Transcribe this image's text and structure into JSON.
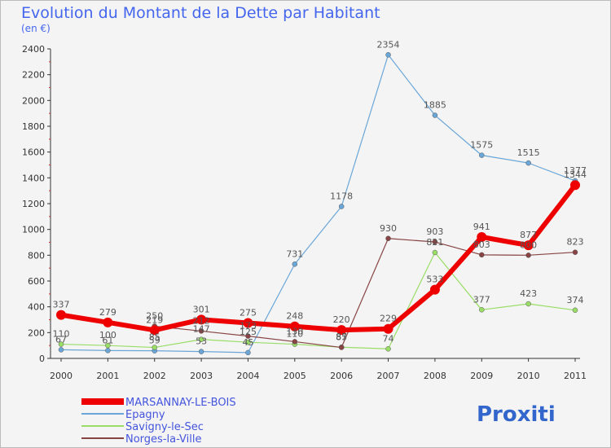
{
  "chart_data": {
    "type": "line",
    "title": "Evolution du Montant de la Dette par Habitant",
    "subtitle": "(en €)",
    "categories": [
      "2000",
      "2001",
      "2002",
      "2003",
      "2004",
      "2005",
      "2006",
      "2007",
      "2008",
      "2009",
      "2010",
      "2011"
    ],
    "ylim": [
      0,
      2400
    ],
    "yticks": [
      0,
      200,
      400,
      600,
      800,
      1000,
      1200,
      1400,
      1600,
      1800,
      2000,
      2200,
      2400
    ],
    "grid": false,
    "legend_position": "bottom-left",
    "series": [
      {
        "name": "Epagny",
        "color": "#6aa6d8",
        "values": [
          67,
          61,
          59,
          53,
          45,
          731,
          1178,
          2354,
          1885,
          1575,
          1515,
          1377
        ]
      },
      {
        "name": "Savigny-le-Sec",
        "color": "#99dd66",
        "values": [
          110,
          100,
          85,
          147,
          125,
          110,
          87,
          74,
          821,
          377,
          423,
          374
        ]
      },
      {
        "name": "Norges-la-Ville",
        "color": "#884444",
        "values": [
          null,
          null,
          250,
          212,
          173,
          130,
          85,
          930,
          903,
          803,
          800,
          823
        ]
      },
      {
        "name": "MARSANNAY-LE-BOIS",
        "color": "#ee0000",
        "values": [
          337,
          279,
          219,
          301,
          275,
          248,
          220,
          229,
          533,
          941,
          877,
          1344
        ]
      }
    ],
    "legend_order": [
      "MARSANNAY-LE-BOIS",
      "Epagny",
      "Savigny-le-Sec",
      "Norges-la-Ville"
    ]
  },
  "logo": {
    "text": "Proxiti"
  }
}
